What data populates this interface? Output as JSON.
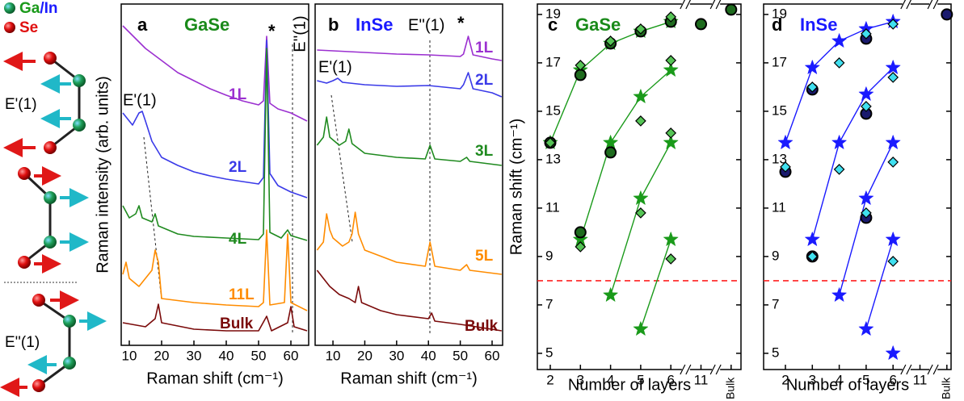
{
  "schematic": {
    "metal": "Ga",
    "metal2": "/In",
    "chalcogen": "Se",
    "mode1": "E'(1)",
    "mode2": "E''(1)"
  },
  "chart_data": [
    {
      "type": "line",
      "xlabel": "Raman shift (cm⁻¹)",
      "ylabel": "Raman intensity (arb. units)",
      "xlim": [
        7.5,
        65.5
      ],
      "ylim": [
        0,
        423
      ],
      "xticks": [
        10,
        20,
        30,
        40,
        50,
        60
      ],
      "annotations": [
        "a",
        "GaSe",
        "*",
        "E''(1)",
        "E'(1)"
      ],
      "series": [
        {
          "name": "1L",
          "color": "#9b30d0",
          "x": [
            8,
            15,
            20,
            25,
            30,
            35,
            40,
            45,
            50,
            51.5,
            52.5,
            53.5,
            56,
            60,
            65
          ],
          "values": [
            396,
            368,
            353,
            338,
            328,
            318,
            310,
            303,
            298,
            303,
            383,
            300,
            293,
            288,
            278
          ]
        },
        {
          "name": "2L",
          "color": "#3a3ae8",
          "x": [
            8,
            11,
            13,
            14,
            15,
            17,
            20,
            25,
            30,
            35,
            40,
            45,
            50,
            51.5,
            52.5,
            53.5,
            56,
            60,
            65
          ],
          "values": [
            288,
            273,
            288,
            290,
            278,
            253,
            233,
            223,
            215,
            210,
            206,
            203,
            200,
            208,
            378,
            213,
            198,
            190,
            183
          ]
        },
        {
          "name": "4L",
          "color": "#1f8a1f",
          "x": [
            8,
            10,
            12,
            13,
            14,
            17,
            18,
            19,
            25,
            30,
            40,
            50,
            51.5,
            52.5,
            53.5,
            57,
            59,
            60,
            65
          ],
          "values": [
            173,
            158,
            163,
            173,
            158,
            153,
            163,
            148,
            138,
            135,
            133,
            131,
            138,
            368,
            140,
            133,
            143,
            136,
            130
          ]
        },
        {
          "name": "11L",
          "color": "#ff8c00",
          "x": [
            8,
            9,
            10,
            13,
            17,
            18,
            19,
            20,
            30,
            40,
            50,
            51.5,
            52.5,
            53.5,
            58,
            59,
            60,
            65
          ],
          "values": [
            88,
            103,
            83,
            73,
            93,
            118,
            103,
            58,
            53,
            50,
            48,
            53,
            143,
            50,
            53,
            138,
            53,
            43
          ]
        },
        {
          "name": "Bulk",
          "color": "#7a0a0a",
          "x": [
            8,
            15,
            18,
            19,
            20,
            30,
            40,
            50,
            52.5,
            54,
            59,
            60,
            61,
            65
          ],
          "values": [
            28,
            23,
            33,
            51,
            28,
            20,
            18,
            18,
            36,
            18,
            28,
            48,
            23,
            18
          ]
        }
      ]
    },
    {
      "type": "line",
      "xlabel": "Raman shift (cm⁻¹)",
      "xlim": [
        4.4,
        63.3
      ],
      "ylim": [
        0,
        423
      ],
      "xticks": [
        10,
        20,
        30,
        40,
        50,
        60
      ],
      "annotations": [
        "b",
        "InSe",
        "E''(1)",
        "*",
        "E'(1)"
      ],
      "series": [
        {
          "name": "1L",
          "color": "#9b30d0",
          "x": [
            5,
            10,
            20,
            30,
            40,
            50,
            51,
            52.5,
            54,
            60,
            63
          ],
          "values": [
            366,
            365,
            363,
            361,
            360,
            358,
            361,
            383,
            360,
            355,
            353
          ]
        },
        {
          "name": "2L",
          "color": "#3a3ae8",
          "x": [
            5,
            8,
            10,
            11.5,
            13,
            20,
            30,
            40,
            50,
            51,
            52.5,
            54,
            60,
            63
          ],
          "values": [
            328,
            325,
            328,
            331,
            326,
            323,
            321,
            322,
            318,
            323,
            338,
            318,
            313,
            308
          ]
        },
        {
          "name": "3L",
          "color": "#1f8a1f",
          "x": [
            5,
            7,
            8,
            9,
            12,
            14,
            15,
            16,
            20,
            30,
            39,
            40.5,
            42,
            50,
            52,
            53,
            63
          ],
          "values": [
            248,
            258,
            283,
            258,
            248,
            253,
            268,
            250,
            238,
            233,
            231,
            248,
            231,
            228,
            233,
            228,
            223
          ]
        },
        {
          "name": "5L",
          "color": "#ff8c00",
          "x": [
            5,
            7,
            8,
            9,
            10,
            13,
            15,
            16,
            17,
            18,
            20,
            30,
            39,
            40.5,
            42,
            50,
            52,
            53,
            63
          ],
          "values": [
            118,
            128,
            163,
            143,
            133,
            123,
            128,
            138,
            165,
            138,
            118,
            103,
            98,
            128,
            98,
            93,
            100,
            93,
            88
          ]
        },
        {
          "name": "Bulk",
          "color": "#7a0a0a",
          "x": [
            5,
            7,
            9,
            12,
            15,
            17,
            18,
            19,
            25,
            30,
            40,
            41,
            42,
            50,
            55,
            63
          ],
          "values": [
            93,
            83,
            73,
            63,
            58,
            53,
            73,
            53,
            43,
            38,
            33,
            40,
            30,
            26,
            23,
            18
          ]
        }
      ]
    },
    {
      "type": "scatter",
      "xlabel": "Number of layers",
      "ylabel": "Raman shift (cm⁻¹)",
      "categories": [
        "2",
        "3",
        "4",
        "5",
        "6",
        "11",
        "Bulk"
      ],
      "ylim": [
        4.33,
        19.43
      ],
      "yticks": [
        5,
        7,
        9,
        11,
        13,
        15,
        17,
        19
      ],
      "hline": 8,
      "hline_color": "#ff2020",
      "annotations": [
        "c",
        "GaSe"
      ],
      "series": [
        {
          "marker": "star",
          "color": "#1a9a1a",
          "line": true,
          "x": [
            "2",
            "3",
            "4",
            "5",
            "6"
          ],
          "values": [
            13.7,
            16.7,
            17.8,
            18.3,
            18.7
          ]
        },
        {
          "marker": "star",
          "color": "#1a9a1a",
          "line": true,
          "x": [
            "3",
            "4",
            "5",
            "6"
          ],
          "values": [
            9.7,
            13.7,
            15.6,
            16.7
          ]
        },
        {
          "marker": "star",
          "color": "#1a9a1a",
          "line": true,
          "x": [
            "4",
            "5",
            "6"
          ],
          "values": [
            7.4,
            11.4,
            13.7
          ]
        },
        {
          "marker": "star",
          "color": "#1a9a1a",
          "line": true,
          "x": [
            "5",
            "6"
          ],
          "values": [
            6.0,
            9.7
          ]
        },
        {
          "marker": "circle",
          "color": "#1e6b1e",
          "x": [
            "2",
            "3",
            "3",
            "4",
            "4",
            "5",
            "6",
            "11",
            "Bulk"
          ],
          "values": [
            13.7,
            16.5,
            10.0,
            17.8,
            13.3,
            18.3,
            18.7,
            18.6,
            19.2
          ]
        },
        {
          "marker": "diamond",
          "color": "#55c455",
          "x": [
            "2",
            "3",
            "3",
            "4",
            "5",
            "5",
            "5",
            "6",
            "6",
            "6",
            "6"
          ],
          "values": [
            13.7,
            16.9,
            9.4,
            17.9,
            18.4,
            14.6,
            10.8,
            18.9,
            17.1,
            14.1,
            8.9
          ]
        }
      ]
    },
    {
      "type": "scatter",
      "xlabel": "Number of layers",
      "categories": [
        "2",
        "3",
        "4",
        "5",
        "6",
        "11",
        "Bulk"
      ],
      "ylim": [
        4.33,
        19.43
      ],
      "yticks": [
        5,
        7,
        9,
        11,
        13,
        15,
        17,
        19
      ],
      "hline": 8,
      "hline_color": "#ff2020",
      "annotations": [
        "d",
        "InSe"
      ],
      "series": [
        {
          "marker": "star",
          "color": "#1a1aff",
          "line": true,
          "x": [
            "2",
            "3",
            "4",
            "5",
            "6"
          ],
          "values": [
            13.7,
            16.8,
            17.9,
            18.4,
            18.7
          ]
        },
        {
          "marker": "star",
          "color": "#1a1aff",
          "line": true,
          "x": [
            "3",
            "4",
            "5",
            "6"
          ],
          "values": [
            9.7,
            13.7,
            15.7,
            16.8
          ]
        },
        {
          "marker": "star",
          "color": "#1a1aff",
          "line": true,
          "x": [
            "4",
            "5",
            "6"
          ],
          "values": [
            7.4,
            11.4,
            13.7
          ]
        },
        {
          "marker": "star",
          "color": "#1a1aff",
          "line": true,
          "x": [
            "5",
            "6"
          ],
          "values": [
            6.0,
            9.7
          ]
        },
        {
          "marker": "star",
          "color": "#1a1aff",
          "x": [
            "6"
          ],
          "values": [
            5.0
          ]
        },
        {
          "marker": "circle",
          "color": "#1a1a6e",
          "x": [
            "2",
            "3",
            "3",
            "5",
            "5",
            "5",
            "Bulk"
          ],
          "values": [
            12.5,
            15.9,
            9.0,
            18.0,
            14.9,
            10.6,
            19.0
          ]
        },
        {
          "marker": "diamond",
          "color": "#40e0f0",
          "x": [
            "2",
            "3",
            "3",
            "4",
            "4",
            "5",
            "5",
            "5",
            "6",
            "6",
            "6",
            "6"
          ],
          "values": [
            12.7,
            16.0,
            9.0,
            17.0,
            12.6,
            18.2,
            15.2,
            10.8,
            18.6,
            16.4,
            12.9,
            8.8
          ]
        }
      ]
    }
  ]
}
